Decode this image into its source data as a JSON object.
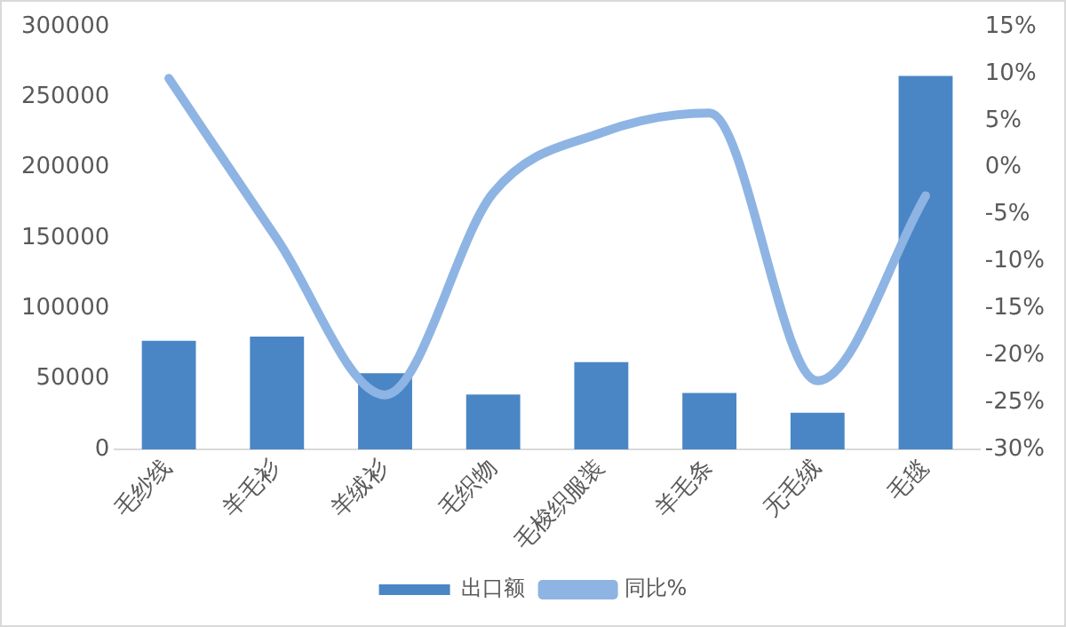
{
  "chart_data": {
    "type": "bar",
    "categories": [
      "毛纱线",
      "羊毛衫",
      "羊绒衫",
      "毛织物",
      "毛梭织服装",
      "羊毛条",
      "无毛绒",
      "毛毯"
    ],
    "series": [
      {
        "name": "出口额",
        "type": "bar",
        "color": "#4a86c5",
        "values": [
          77000,
          80000,
          54000,
          39000,
          62000,
          40000,
          26000,
          265000
        ]
      },
      {
        "name": "同比%",
        "type": "line",
        "axis": "y2",
        "color": "#8eb4e3",
        "values": [
          9.5,
          -7.6,
          -24.2,
          -2.7,
          3.7,
          5.8,
          -22.7,
          -3
        ]
      }
    ],
    "ylim": [
      0,
      300000
    ],
    "yticks": [
      0,
      50000,
      100000,
      150000,
      200000,
      250000,
      300000
    ],
    "y2lim": [
      -30,
      15
    ],
    "y2ticks": [
      {
        "value": -30,
        "label": "-30%"
      },
      {
        "value": -25,
        "label": "-25%"
      },
      {
        "value": -20,
        "label": "-20%"
      },
      {
        "value": -15,
        "label": "-15%"
      },
      {
        "value": -10,
        "label": "-10%"
      },
      {
        "value": -5,
        "label": "-5%"
      },
      {
        "value": 0,
        "label": "0%"
      },
      {
        "value": 5,
        "label": "5%"
      },
      {
        "value": 10,
        "label": "10%"
      },
      {
        "value": 15,
        "label": "15%"
      }
    ],
    "grid": false,
    "legend": "bottom",
    "marker": "none"
  }
}
